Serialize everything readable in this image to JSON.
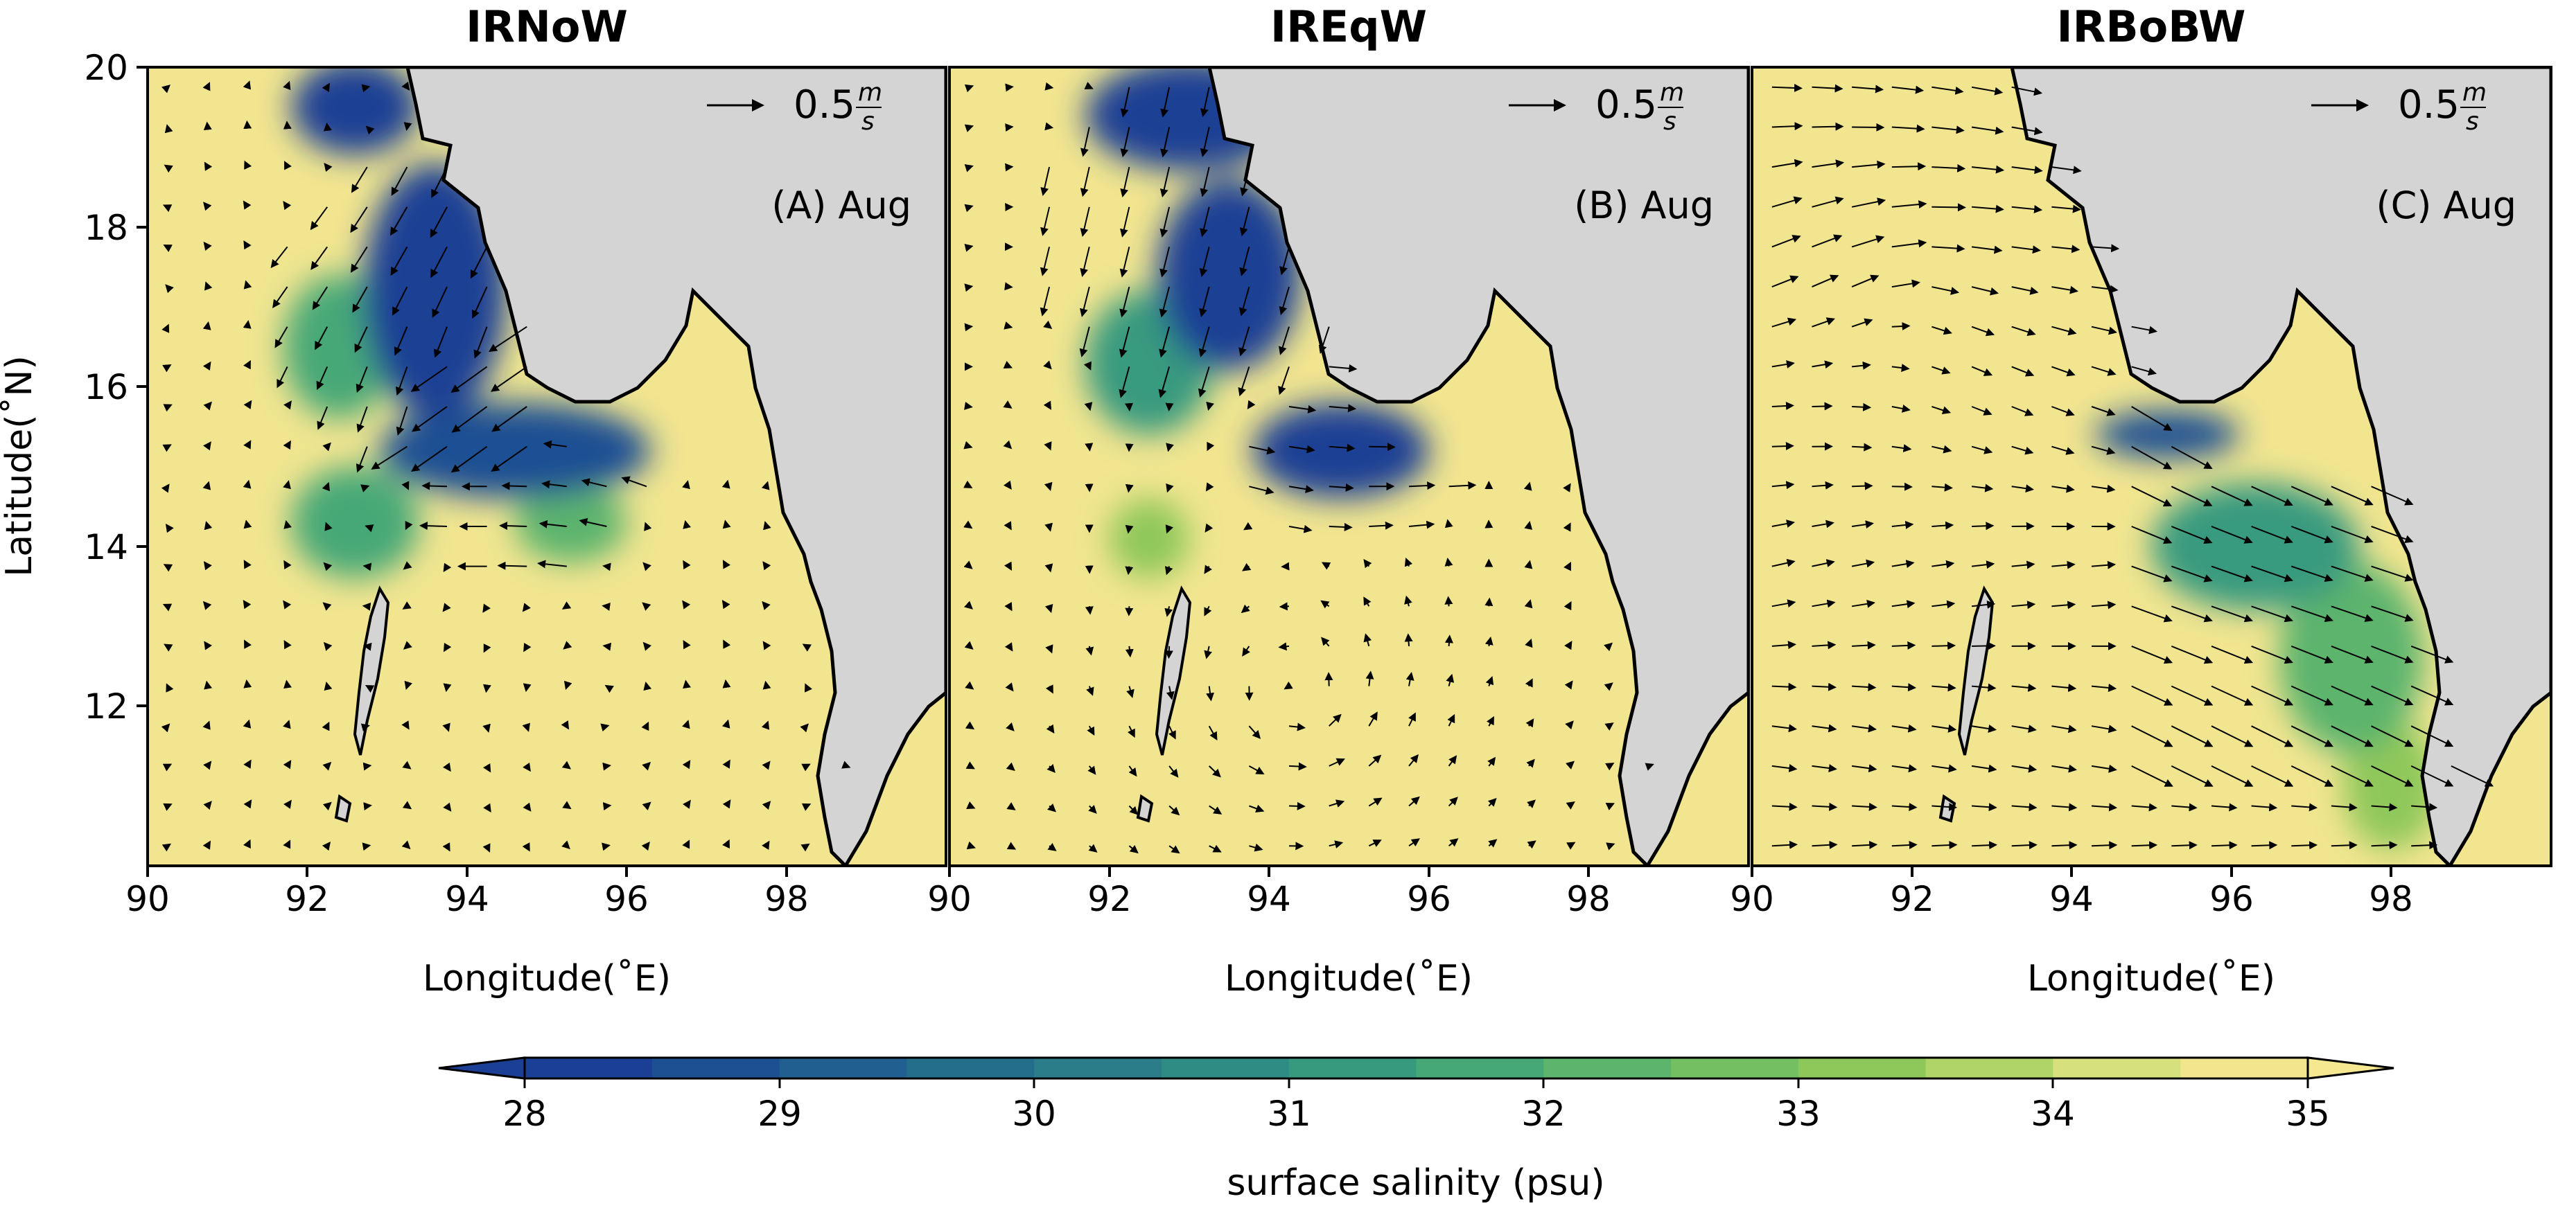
{
  "chart_data": [
    {
      "type": "heatmap",
      "title": "IRNoW",
      "annotation": "(A) Aug",
      "vector_key": "0.5",
      "vector_key_unit_num": "m",
      "vector_key_unit_den": "s",
      "xlabel": "Longitude(˚E)",
      "ylabel": "Latitude(˚N)",
      "xlim": [
        90,
        100
      ],
      "ylim": [
        10,
        20
      ],
      "xticks": [
        "90",
        "92",
        "94",
        "96",
        "98"
      ],
      "yticks": [
        "12",
        "14",
        "16",
        "18",
        "20"
      ],
      "low_salinity_regions": [
        {
          "lon": 93.6,
          "lat": 17.2,
          "rx": 0.9,
          "ry": 1.6,
          "salinity": 28
        },
        {
          "lon": 92.6,
          "lat": 19.5,
          "rx": 0.8,
          "ry": 0.6,
          "salinity": 28
        },
        {
          "lon": 94.6,
          "lat": 15.2,
          "rx": 1.7,
          "ry": 0.6,
          "salinity": 28.5
        },
        {
          "lon": 92.4,
          "lat": 16.5,
          "rx": 0.7,
          "ry": 0.9,
          "salinity": 31.5
        },
        {
          "lon": 92.6,
          "lat": 14.3,
          "rx": 0.8,
          "ry": 0.7,
          "salinity": 31.5
        },
        {
          "lon": 95.3,
          "lat": 14.3,
          "rx": 0.7,
          "ry": 0.5,
          "salinity": 32
        }
      ]
    },
    {
      "type": "heatmap",
      "title": "IREqW",
      "annotation": "(B) Aug",
      "vector_key": "0.5",
      "vector_key_unit_num": "m",
      "vector_key_unit_den": "s",
      "xlabel": "Longitude(˚E)",
      "ylabel": "",
      "xlim": [
        90,
        100
      ],
      "ylim": [
        10,
        20
      ],
      "xticks": [
        "90",
        "92",
        "94",
        "96",
        "98"
      ],
      "yticks": [],
      "low_salinity_regions": [
        {
          "lon": 93.0,
          "lat": 19.4,
          "rx": 1.3,
          "ry": 0.7,
          "salinity": 28
        },
        {
          "lon": 93.5,
          "lat": 17.4,
          "rx": 0.9,
          "ry": 1.2,
          "salinity": 28
        },
        {
          "lon": 94.9,
          "lat": 15.2,
          "rx": 1.1,
          "ry": 0.6,
          "salinity": 28
        },
        {
          "lon": 92.5,
          "lat": 16.3,
          "rx": 0.8,
          "ry": 0.9,
          "salinity": 31
        },
        {
          "lon": 92.5,
          "lat": 14.1,
          "rx": 0.5,
          "ry": 0.5,
          "salinity": 33
        }
      ]
    },
    {
      "type": "heatmap",
      "title": "IRBoBW",
      "annotation": "(C) Aug",
      "vector_key": "0.5",
      "vector_key_unit_num": "m",
      "vector_key_unit_den": "s",
      "xlabel": "Longitude(˚E)",
      "ylabel": "",
      "xlim": [
        90,
        100
      ],
      "ylim": [
        10,
        20
      ],
      "xticks": [
        "90",
        "92",
        "94",
        "96",
        "98"
      ],
      "yticks": [],
      "low_salinity_regions": [
        {
          "lon": 95.2,
          "lat": 15.4,
          "rx": 0.9,
          "ry": 0.3,
          "salinity": 28.5
        },
        {
          "lon": 96.3,
          "lat": 14.0,
          "rx": 1.3,
          "ry": 0.8,
          "salinity": 31
        },
        {
          "lon": 97.5,
          "lat": 12.6,
          "rx": 0.9,
          "ry": 1.2,
          "salinity": 32
        },
        {
          "lon": 98.0,
          "lat": 11.0,
          "rx": 0.6,
          "ry": 0.8,
          "salinity": 33
        }
      ]
    }
  ],
  "colorbar": {
    "label": "surface salinity (psu)",
    "ticks": [
      "28",
      "29",
      "30",
      "31",
      "32",
      "33",
      "34",
      "35"
    ],
    "min": 28,
    "max": 35,
    "colors": [
      "#1a3f94",
      "#1d4f93",
      "#205f8f",
      "#246e8c",
      "#2a7d89",
      "#2f8c84",
      "#379a7f",
      "#46a877",
      "#5cb46d",
      "#75bf63",
      "#8fc85a",
      "#b0d468",
      "#d6e07d",
      "#f1e58d"
    ],
    "under_color": "#1a3f94",
    "over_color": "#f5e890"
  },
  "colors": {
    "background_salinity": "#f1e590",
    "land": "#d4d4d4",
    "coast": "#000000"
  }
}
